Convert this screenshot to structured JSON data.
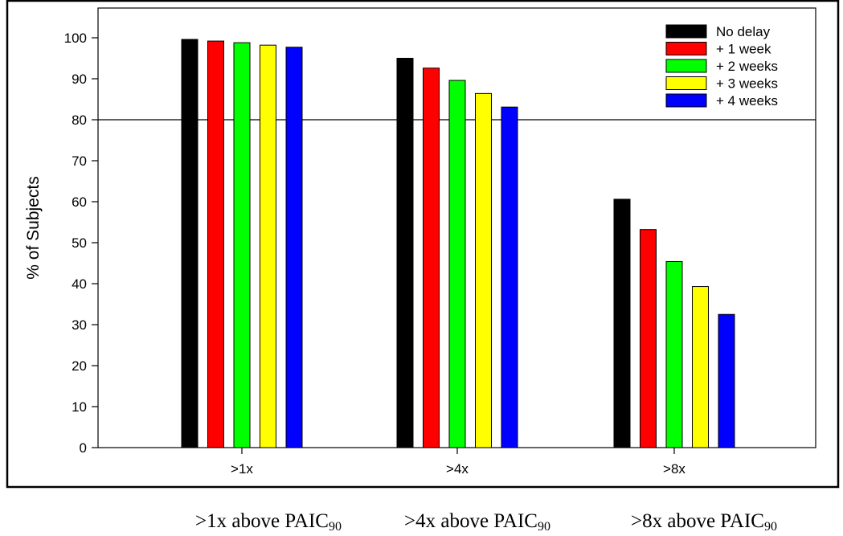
{
  "chart_data": {
    "type": "bar",
    "ylabel": "% of Subjects",
    "ylim": [
      0,
      105
    ],
    "yticks": [
      0,
      10,
      20,
      30,
      40,
      50,
      60,
      70,
      80,
      90,
      100
    ],
    "categories": [
      ">1x",
      ">4x",
      ">8x"
    ],
    "reference_line": 80,
    "legend_position": "top-right",
    "series": [
      {
        "name": "No delay",
        "color": "#000000",
        "values": [
          99.6,
          95.0,
          60.6
        ]
      },
      {
        "name": "+ 1 week",
        "color": "#ff0000",
        "values": [
          99.2,
          92.6,
          53.2
        ]
      },
      {
        "name": "+ 2 weeks",
        "color": "#00ff00",
        "values": [
          98.8,
          89.6,
          45.4
        ]
      },
      {
        "name": "+ 3 weeks",
        "color": "#ffff00",
        "values": [
          98.2,
          86.4,
          39.3
        ]
      },
      {
        "name": "+ 4 weeks",
        "color": "#0000ff",
        "values": [
          97.7,
          83.1,
          32.5
        ]
      }
    ]
  },
  "captions": [
    {
      "text": ">1x above PAIC",
      "sub": "90"
    },
    {
      "text": ">4x above PAIC",
      "sub": "90"
    },
    {
      "text": ">8x above PAIC",
      "sub": "90"
    }
  ]
}
